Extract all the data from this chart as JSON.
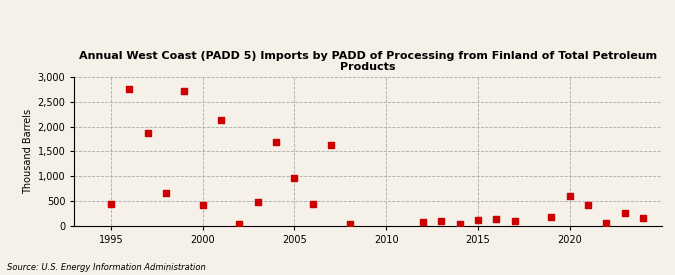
{
  "title": "Annual West Coast (PADD 5) Imports by PADD of Processing from Finland of Total Petroleum Products",
  "ylabel": "Thousand Barrels",
  "source": "Source: U.S. Energy Information Administration",
  "background_color": "#f5f0e8",
  "marker_color": "#cc0000",
  "xlim": [
    1993,
    2025
  ],
  "ylim": [
    0,
    3000
  ],
  "yticks": [
    0,
    500,
    1000,
    1500,
    2000,
    2500,
    3000
  ],
  "xticks": [
    1995,
    2000,
    2005,
    2010,
    2015,
    2020
  ],
  "years": [
    1995,
    1996,
    1997,
    1998,
    1999,
    2000,
    2001,
    2002,
    2003,
    2004,
    2005,
    2006,
    2007,
    2008,
    2012,
    2013,
    2014,
    2015,
    2016,
    2017,
    2019,
    2020,
    2021,
    2022,
    2023,
    2024
  ],
  "values": [
    430,
    2750,
    1860,
    650,
    2720,
    420,
    2130,
    30,
    480,
    1690,
    960,
    440,
    1620,
    30,
    70,
    100,
    30,
    115,
    130,
    100,
    175,
    600,
    420,
    60,
    250,
    150
  ]
}
